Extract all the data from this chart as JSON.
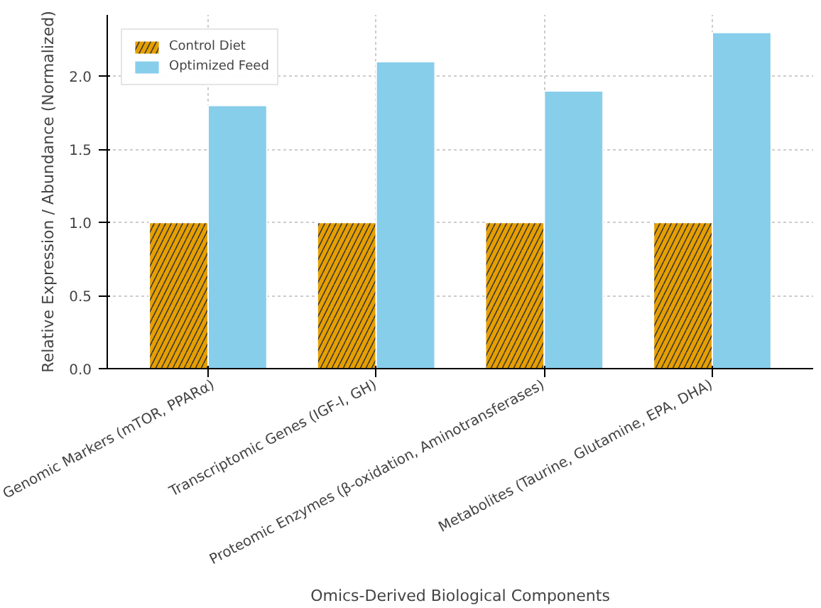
{
  "chart_data": {
    "type": "bar",
    "xlabel": "Omics-Derived Biological Components",
    "ylabel": "Relative Expression / Abundance (Normalized)",
    "categories": [
      "Genomic Markers (mTOR, PPARα)",
      "Transcriptomic Genes (IGF-I, GH)",
      "Proteomic Enzymes (β-oxidation, Aminotransferases)",
      "Metabolites (Taurine, Glutamine, EPA, DHA)"
    ],
    "series": [
      {
        "name": "Control Diet",
        "color": "#e69f00",
        "values": [
          1.0,
          1.0,
          1.0,
          1.0
        ]
      },
      {
        "name": "Optimized Feed",
        "color": "#87ceeb",
        "values": [
          1.8,
          2.1,
          1.9,
          2.3
        ]
      }
    ],
    "ylim": [
      0,
      2.42
    ],
    "yticks": [
      {
        "value": 0,
        "label": "0.0"
      },
      0.5,
      {
        "value": 1,
        "label": "1.0"
      },
      1.5,
      {
        "value": 2,
        "label": "2.0"
      }
    ],
    "grid": true,
    "legend": "top left"
  }
}
